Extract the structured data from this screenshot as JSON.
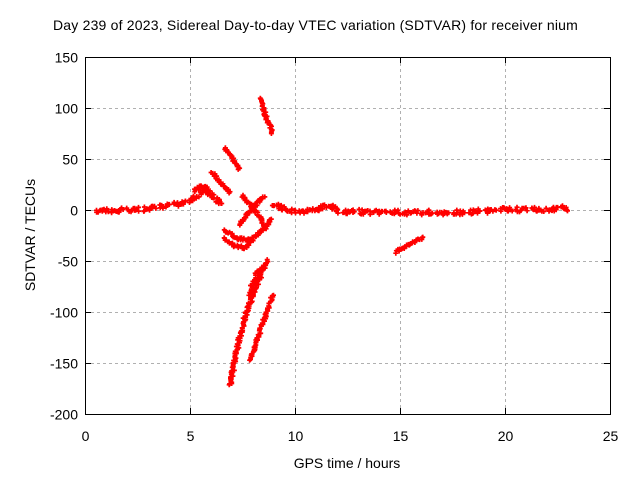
{
  "colors": {
    "background": "#ffffff",
    "axis": "#000000",
    "grid": "#b0b0b0",
    "marker": "#ff0000",
    "text": "#000000"
  },
  "chart_data": {
    "type": "scatter",
    "title": "Day 239 of 2023, Sidereal Day-to-day VTEC variation (SDTVAR) for receiver nium",
    "xlabel": "GPS time / hours",
    "ylabel": "SDTVAR / TECUs",
    "xlim": [
      0,
      25
    ],
    "ylim": [
      -200,
      150
    ],
    "xticks": [
      0,
      5,
      10,
      15,
      20,
      25
    ],
    "yticks": [
      -200,
      -150,
      -100,
      -50,
      0,
      50,
      100,
      150
    ],
    "grid": true,
    "legend": "none",
    "marker": "+",
    "marker_size": 5,
    "marker_color": "#ff0000",
    "series": [
      {
        "name": "SDTVAR",
        "tracks": [
          {
            "name": "band-left",
            "dashed": true,
            "thickness": 5,
            "points": [
              [
                0.4,
                -1
              ],
              [
                0.8,
                -1
              ],
              [
                1.2,
                -1
              ],
              [
                1.6,
                0
              ],
              [
                2.0,
                0
              ],
              [
                2.4,
                1
              ],
              [
                2.8,
                1
              ],
              [
                3.2,
                2
              ],
              [
                3.6,
                3
              ],
              [
                4.0,
                4
              ],
              [
                4.4,
                6
              ],
              [
                4.8,
                8
              ],
              [
                5.1,
                11
              ],
              [
                5.4,
                15
              ],
              [
                5.7,
                18
              ],
              [
                6.0,
                14
              ],
              [
                6.3,
                9
              ],
              [
                6.6,
                5
              ]
            ]
          },
          {
            "name": "hump-top",
            "thickness": 4,
            "points": [
              [
                5.2,
                18
              ],
              [
                5.5,
                23
              ],
              [
                5.8,
                22
              ],
              [
                6.1,
                14
              ]
            ]
          },
          {
            "name": "fan-streak-1",
            "thickness": 2.5,
            "points": [
              [
                6.05,
                37
              ],
              [
                6.45,
                27
              ],
              [
                6.9,
                17
              ]
            ]
          },
          {
            "name": "fan-streak-2",
            "thickness": 2.5,
            "points": [
              [
                6.65,
                61
              ],
              [
                7.0,
                51
              ],
              [
                7.35,
                40
              ]
            ]
          },
          {
            "name": "fan-streak-3",
            "thickness": 3,
            "points": [
              [
                8.35,
                109
              ],
              [
                8.6,
                92
              ],
              [
                8.95,
                75
              ]
            ]
          },
          {
            "name": "cross-up",
            "thickness": 2.5,
            "points": [
              [
                7.35,
                -14
              ],
              [
                7.9,
                0
              ],
              [
                8.5,
                13
              ]
            ]
          },
          {
            "name": "cross-down",
            "thickness": 2.5,
            "points": [
              [
                7.5,
                14
              ],
              [
                8.0,
                2
              ],
              [
                8.35,
                -8
              ],
              [
                8.6,
                -19
              ]
            ]
          },
          {
            "name": "arc-1",
            "thickness": 2.5,
            "points": [
              [
                6.65,
                -20
              ],
              [
                7.3,
                -28
              ],
              [
                7.9,
                -29
              ],
              [
                8.45,
                -20
              ],
              [
                8.9,
                -9
              ]
            ]
          },
          {
            "name": "arc-2",
            "thickness": 2.5,
            "points": [
              [
                6.6,
                -27
              ],
              [
                7.1,
                -35
              ],
              [
                7.6,
                -37
              ],
              [
                8.0,
                -30
              ]
            ]
          },
          {
            "name": "plunge-1",
            "thickness": 3,
            "points": [
              [
                8.68,
                -49
              ],
              [
                8.3,
                -68
              ],
              [
                7.95,
                -86
              ],
              [
                7.6,
                -106
              ],
              [
                7.35,
                -126
              ],
              [
                7.15,
                -146
              ],
              [
                7.0,
                -162
              ],
              [
                6.9,
                -172
              ]
            ]
          },
          {
            "name": "plunge-1-knot",
            "thickness": 5,
            "points": [
              [
                8.35,
                -56
              ],
              [
                8.05,
                -70
              ],
              [
                7.85,
                -84
              ]
            ]
          },
          {
            "name": "plunge-2",
            "thickness": 2.5,
            "points": [
              [
                8.95,
                -83
              ],
              [
                8.6,
                -103
              ],
              [
                8.3,
                -121
              ],
              [
                8.05,
                -136
              ],
              [
                7.85,
                -147
              ]
            ]
          },
          {
            "name": "band-resume",
            "thickness": 5,
            "points": [
              [
                8.95,
                6
              ],
              [
                9.3,
                3
              ],
              [
                9.6,
                1
              ]
            ]
          },
          {
            "name": "band-right",
            "dashed": true,
            "thickness": 4.5,
            "points": [
              [
                9.6,
                0
              ],
              [
                10.0,
                -1
              ],
              [
                10.4,
                -2
              ],
              [
                10.8,
                -1
              ],
              [
                11.1,
                1
              ],
              [
                11.45,
                4
              ],
              [
                11.75,
                4
              ],
              [
                12.0,
                -1
              ],
              [
                12.4,
                -2
              ],
              [
                12.8,
                -1
              ],
              [
                13.2,
                -2
              ],
              [
                13.6,
                -3
              ],
              [
                14.0,
                -2
              ],
              [
                14.4,
                -3
              ],
              [
                14.8,
                -2
              ],
              [
                15.2,
                -3
              ],
              [
                15.6,
                -2
              ],
              [
                16.0,
                -3
              ],
              [
                16.4,
                -2
              ],
              [
                16.8,
                -3
              ],
              [
                17.2,
                -3
              ],
              [
                17.6,
                -2
              ],
              [
                18.0,
                -3
              ],
              [
                18.4,
                -2
              ],
              [
                18.8,
                -1
              ],
              [
                19.2,
                -1
              ],
              [
                19.6,
                0
              ],
              [
                20.0,
                1
              ],
              [
                20.4,
                1
              ],
              [
                20.8,
                0
              ],
              [
                21.2,
                0
              ],
              [
                21.6,
                1
              ],
              [
                22.0,
                0
              ],
              [
                22.3,
                1
              ],
              [
                22.6,
                4
              ],
              [
                22.85,
                2
              ],
              [
                23.0,
                0
              ]
            ]
          },
          {
            "name": "isolated-streak",
            "thickness": 2.5,
            "points": [
              [
                14.8,
                -41
              ],
              [
                15.45,
                -34
              ],
              [
                16.1,
                -27
              ]
            ]
          }
        ]
      }
    ]
  }
}
